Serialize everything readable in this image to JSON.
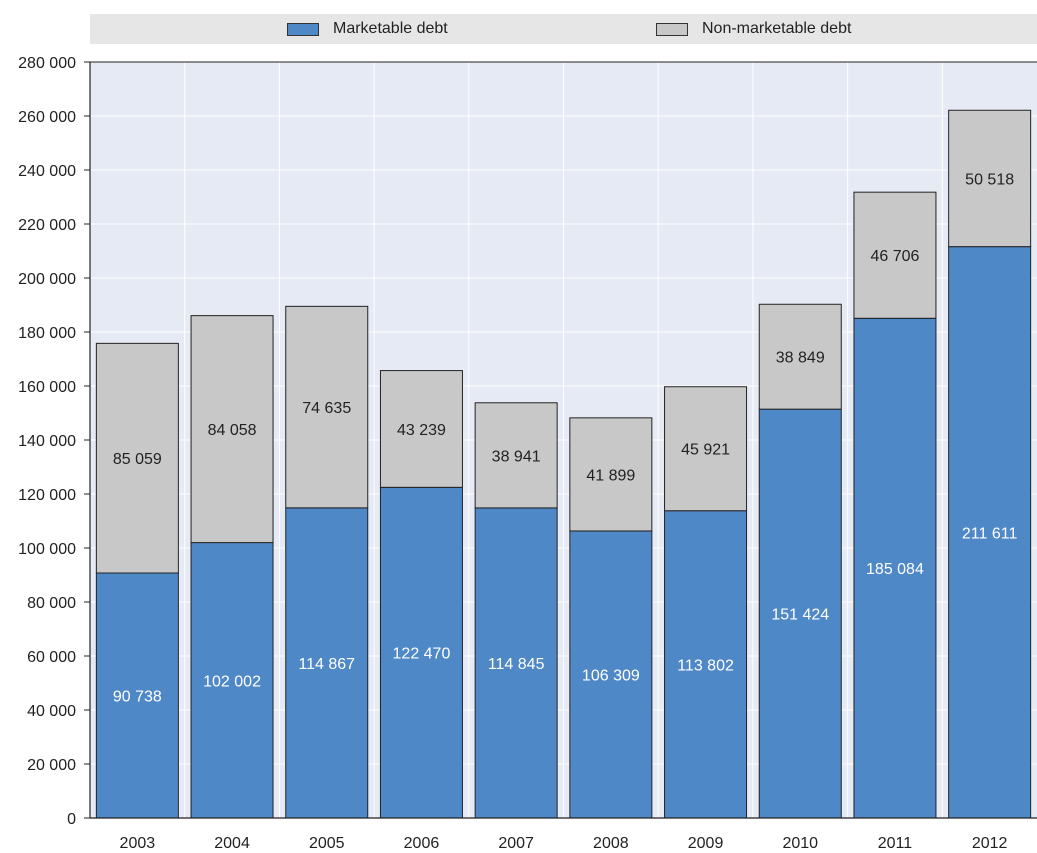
{
  "chart_data": {
    "type": "bar",
    "stacked": true,
    "categories": [
      "2003",
      "2004",
      "2005",
      "2006",
      "2007",
      "2008",
      "2009",
      "2010",
      "2011",
      "2012"
    ],
    "series": [
      {
        "name": "Marketable debt",
        "color": "#4f88c7",
        "values": [
          90738,
          102002,
          114867,
          122470,
          114845,
          106309,
          113802,
          151424,
          185084,
          211611
        ],
        "labels": [
          "90 738",
          "102 002",
          "114 867",
          "122 470",
          "114 845",
          "106 309",
          "113 802",
          "151 424",
          "185 084",
          "211 611"
        ]
      },
      {
        "name": "Non-marketable debt",
        "color": "#c8c8c8",
        "values": [
          85059,
          84058,
          74635,
          43239,
          38941,
          41899,
          45921,
          38849,
          46706,
          50518
        ],
        "labels": [
          "85 059",
          "84 058",
          "74 635",
          "43 239",
          "38 941",
          "41 899",
          "45 921",
          "38 849",
          "46 706",
          "50 518"
        ]
      }
    ],
    "ylim": [
      0,
      280000
    ],
    "yticks": [
      0,
      20000,
      40000,
      60000,
      80000,
      100000,
      120000,
      140000,
      160000,
      180000,
      200000,
      220000,
      240000,
      260000,
      280000
    ],
    "ytick_labels": [
      "0",
      "20 000",
      "40 000",
      "60 000",
      "80 000",
      "100 000",
      "120 000",
      "140 000",
      "160 000",
      "180 000",
      "200 000",
      "220 000",
      "240 000",
      "260 000",
      "280 000"
    ],
    "grid": true,
    "legend_position": "top",
    "plot_background": "#e6eaf5"
  }
}
